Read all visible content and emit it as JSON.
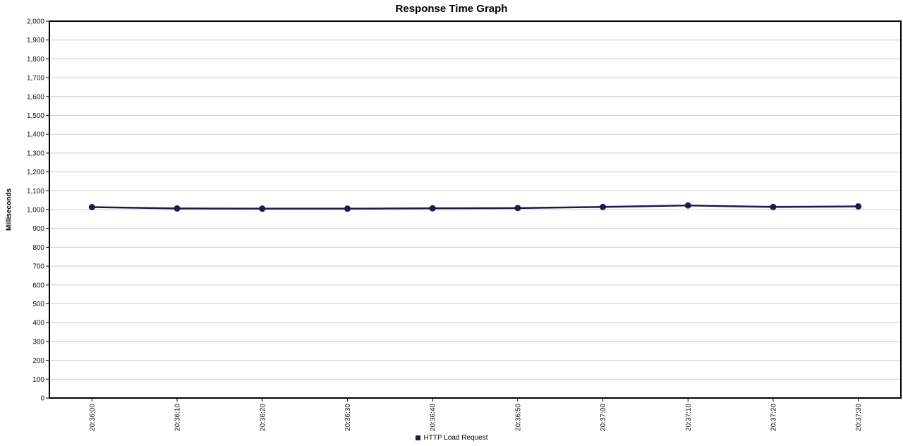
{
  "chart_data": {
    "type": "line",
    "title": "Response Time Graph",
    "xlabel": "",
    "ylabel": "Milliseconds",
    "categories": [
      "20:36:00",
      "20:36:10",
      "20:36:20",
      "20:36:30",
      "20:36:40",
      "20:36:50",
      "20:37:00",
      "20:37:10",
      "20:37:20",
      "20:37:30"
    ],
    "series": [
      {
        "name": "HTTP Load Request",
        "color": "#1b1b4d",
        "values": [
          1013,
          1006,
          1005,
          1005,
          1007,
          1008,
          1014,
          1022,
          1014,
          1017
        ]
      }
    ],
    "ylim": [
      0,
      2000
    ],
    "y_tick_step": 100,
    "grid": true,
    "legend_position": "bottom-center",
    "colors": {
      "grid": "#cccccc",
      "axis": "#000000",
      "tick_label": "#111111",
      "title": "#000000",
      "background": "#ffffff"
    }
  }
}
